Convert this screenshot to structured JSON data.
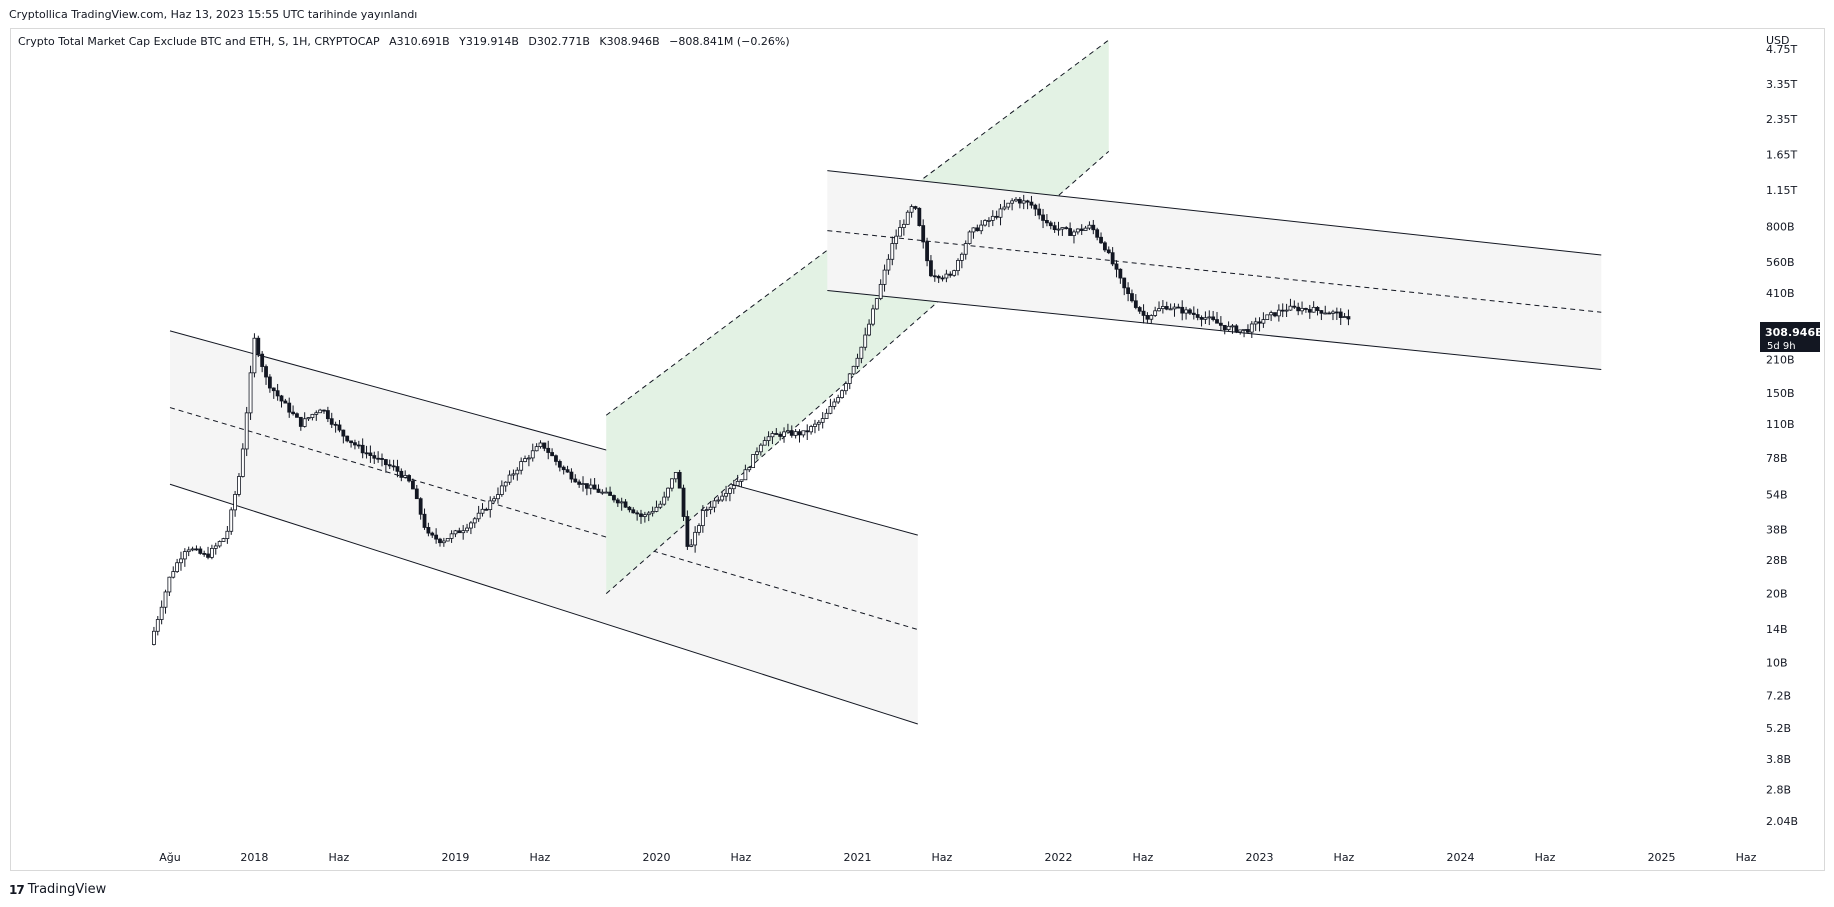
{
  "publish_info": "Cryptollica TradingView.com, Haz 13, 2023 15:55 UTC tarihinde yayınlandı",
  "legend": {
    "symbol": "Crypto Total Market Cap Exclude BTC and ETH, S, 1H, CRYPTOCAP",
    "open": "A310.691B",
    "high": "Y319.914B",
    "low": "D302.771B",
    "close": "K308.946B",
    "change": "−808.841M (−0.26%)"
  },
  "footer": {
    "logo_mark": "17",
    "logo_text": "TradingView"
  },
  "colors": {
    "up": "#ffffff",
    "down": "#131722",
    "channel_fill": "#f5f5f5",
    "green_fill": "#e3f2e4",
    "price_label_bg": "#131722"
  },
  "chart_data": {
    "type": "candlestick",
    "scale": "log",
    "currency": "USD",
    "y_range_usd": [
      1900000000.0,
      5200000000000.0
    ],
    "current_price_label": "308.946B",
    "countdown_label": "5d 9h",
    "y_ticks": [
      {
        "label": "4.75T",
        "value": 4750000000000.0
      },
      {
        "label": "3.35T",
        "value": 3350000000000.0
      },
      {
        "label": "2.35T",
        "value": 2350000000000.0
      },
      {
        "label": "1.65T",
        "value": 1650000000000.0
      },
      {
        "label": "1.15T",
        "value": 1150000000000.0
      },
      {
        "label": "800B",
        "value": 800000000000.0
      },
      {
        "label": "560B",
        "value": 560000000000.0
      },
      {
        "label": "410B",
        "value": 410000000000.0
      },
      {
        "label": "210B",
        "value": 210000000000.0
      },
      {
        "label": "150B",
        "value": 150000000000.0
      },
      {
        "label": "110B",
        "value": 110000000000.0
      },
      {
        "label": "78B",
        "value": 78000000000.0
      },
      {
        "label": "54B",
        "value": 54000000000.0
      },
      {
        "label": "38B",
        "value": 38000000000.0
      },
      {
        "label": "28B",
        "value": 28000000000.0
      },
      {
        "label": "20B",
        "value": 20000000000.0
      },
      {
        "label": "14B",
        "value": 14000000000.0
      },
      {
        "label": "10B",
        "value": 10000000000.0
      },
      {
        "label": "7.2B",
        "value": 7200000000.0
      },
      {
        "label": "5.2B",
        "value": 5200000000.0
      },
      {
        "label": "3.8B",
        "value": 3800000000.0
      },
      {
        "label": "2.8B",
        "value": 2800000000.0
      },
      {
        "label": "2.04B",
        "value": 2040000000.0
      }
    ],
    "x_ticks": [
      {
        "label": "Ağu",
        "t": 2017.58
      },
      {
        "label": "2018",
        "t": 2018.0
      },
      {
        "label": "Haz",
        "t": 2018.42
      },
      {
        "label": "2019",
        "t": 2019.0
      },
      {
        "label": "Haz",
        "t": 2019.42
      },
      {
        "label": "2020",
        "t": 2020.0
      },
      {
        "label": "Haz",
        "t": 2020.42
      },
      {
        "label": "2021",
        "t": 2021.0
      },
      {
        "label": "Haz",
        "t": 2021.42
      },
      {
        "label": "2022",
        "t": 2022.0
      },
      {
        "label": "Haz",
        "t": 2022.42
      },
      {
        "label": "2023",
        "t": 2023.0
      },
      {
        "label": "Haz",
        "t": 2023.42
      },
      {
        "label": "2024",
        "t": 2024.0
      },
      {
        "label": "Haz",
        "t": 2024.42
      },
      {
        "label": "2025",
        "t": 2025.0
      },
      {
        "label": "Haz",
        "t": 2025.42
      }
    ],
    "price_path_weekly_close": [
      [
        2017.5,
        12000000000.0
      ],
      [
        2017.6,
        24000000000.0
      ],
      [
        2017.68,
        32000000000.0
      ],
      [
        2017.78,
        29000000000.0
      ],
      [
        2017.88,
        36000000000.0
      ],
      [
        2017.95,
        70000000000.0
      ],
      [
        2018.02,
        260000000000.0
      ],
      [
        2018.08,
        170000000000.0
      ],
      [
        2018.15,
        140000000000.0
      ],
      [
        2018.25,
        110000000000.0
      ],
      [
        2018.35,
        130000000000.0
      ],
      [
        2018.45,
        100000000000.0
      ],
      [
        2018.55,
        85000000000.0
      ],
      [
        2018.65,
        75000000000.0
      ],
      [
        2018.72,
        70000000000.0
      ],
      [
        2018.8,
        60000000000.0
      ],
      [
        2018.88,
        36000000000.0
      ],
      [
        2018.95,
        34000000000.0
      ],
      [
        2019.05,
        38000000000.0
      ],
      [
        2019.15,
        45000000000.0
      ],
      [
        2019.25,
        58000000000.0
      ],
      [
        2019.35,
        75000000000.0
      ],
      [
        2019.45,
        90000000000.0
      ],
      [
        2019.55,
        70000000000.0
      ],
      [
        2019.65,
        60000000000.0
      ],
      [
        2019.75,
        55000000000.0
      ],
      [
        2019.85,
        50000000000.0
      ],
      [
        2019.95,
        43000000000.0
      ],
      [
        2020.05,
        50000000000.0
      ],
      [
        2020.12,
        70000000000.0
      ],
      [
        2020.18,
        30000000000.0
      ],
      [
        2020.25,
        45000000000.0
      ],
      [
        2020.35,
        55000000000.0
      ],
      [
        2020.45,
        65000000000.0
      ],
      [
        2020.55,
        95000000000.0
      ],
      [
        2020.65,
        100000000000.0
      ],
      [
        2020.75,
        100000000000.0
      ],
      [
        2020.85,
        115000000000.0
      ],
      [
        2020.95,
        160000000000.0
      ],
      [
        2021.05,
        250000000000.0
      ],
      [
        2021.12,
        400000000000.0
      ],
      [
        2021.2,
        700000000000.0
      ],
      [
        2021.3,
        1000000000000.0
      ],
      [
        2021.38,
        500000000000.0
      ],
      [
        2021.48,
        480000000000.0
      ],
      [
        2021.58,
        750000000000.0
      ],
      [
        2021.7,
        880000000000.0
      ],
      [
        2021.8,
        1050000000000.0
      ],
      [
        2021.88,
        1000000000000.0
      ],
      [
        2021.98,
        800000000000.0
      ],
      [
        2022.08,
        750000000000.0
      ],
      [
        2022.18,
        800000000000.0
      ],
      [
        2022.25,
        650000000000.0
      ],
      [
        2022.35,
        420000000000.0
      ],
      [
        2022.45,
        320000000000.0
      ],
      [
        2022.55,
        360000000000.0
      ],
      [
        2022.65,
        340000000000.0
      ],
      [
        2022.75,
        320000000000.0
      ],
      [
        2022.85,
        290000000000.0
      ],
      [
        2022.95,
        280000000000.0
      ],
      [
        2023.05,
        320000000000.0
      ],
      [
        2023.15,
        350000000000.0
      ],
      [
        2023.25,
        350000000000.0
      ],
      [
        2023.35,
        340000000000.0
      ],
      [
        2023.42,
        330000000000.0
      ],
      [
        2023.45,
        309000000000.0
      ]
    ],
    "drawings": [
      {
        "kind": "channel",
        "fill": "neutral",
        "upper": [
          [
            2017.58,
            280000000000.0
          ],
          [
            2021.3,
            36000000000.0
          ]
        ],
        "lower": [
          [
            2017.58,
            60000000000.0
          ],
          [
            2021.3,
            5400000000.0
          ]
        ]
      },
      {
        "kind": "channel",
        "fill": "green",
        "upper": [
          [
            2019.75,
            120000000000.0
          ],
          [
            2022.25,
            5200000000000.0
          ]
        ],
        "lower": [
          [
            2019.75,
            20000000000.0
          ],
          [
            2022.25,
            1700000000000.0
          ]
        ]
      },
      {
        "kind": "channel",
        "fill": "neutral",
        "upper": [
          [
            2020.85,
            1400000000000.0
          ],
          [
            2024.7,
            600000000000.0
          ]
        ],
        "lower": [
          [
            2020.85,
            420000000000.0
          ],
          [
            2024.7,
            190000000000.0
          ]
        ]
      }
    ]
  }
}
